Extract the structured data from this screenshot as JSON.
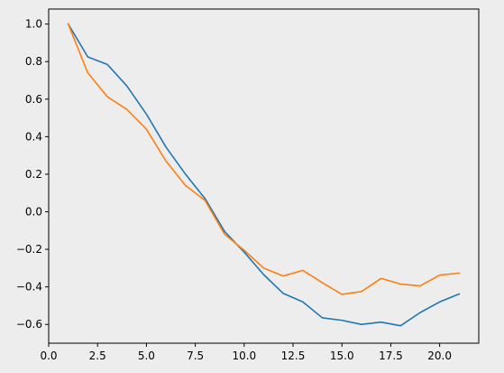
{
  "chart_data": {
    "type": "line",
    "title": "",
    "xlabel": "",
    "ylabel": "",
    "xlim": [
      0,
      22
    ],
    "ylim": [
      -0.7,
      1.08
    ],
    "grid": false,
    "legend": "none",
    "x_ticks": [
      0,
      2.5,
      5,
      7.5,
      10,
      12.5,
      15,
      17.5,
      20
    ],
    "x_tick_labels": [
      "0.0",
      "2.5",
      "5.0",
      "7.5",
      "10.0",
      "12.5",
      "15.0",
      "17.5",
      "20.0"
    ],
    "y_ticks": [
      1.0,
      0.8,
      0.6,
      0.4,
      0.2,
      0.0,
      -0.2,
      -0.4,
      -0.6
    ],
    "y_tick_labels": [
      "1.0",
      "0.8",
      "0.6",
      "0.4",
      "0.2",
      "0.0",
      "−0.2",
      "−0.4",
      "−0.6"
    ],
    "x": [
      1,
      2,
      3,
      4,
      5,
      6,
      7,
      8,
      9,
      10,
      11,
      12,
      13,
      14,
      15,
      16,
      17,
      18,
      19,
      20,
      21
    ],
    "series": [
      {
        "color": "#1f77b4",
        "values": [
          1.0,
          0.825,
          0.785,
          0.67,
          0.52,
          0.345,
          0.2,
          0.07,
          -0.105,
          -0.215,
          -0.335,
          -0.435,
          -0.48,
          -0.565,
          -0.578,
          -0.6,
          -0.588,
          -0.607,
          -0.537,
          -0.48,
          -0.438
        ]
      },
      {
        "color": "#ff7f0e",
        "values": [
          1.0,
          0.74,
          0.613,
          0.545,
          0.44,
          0.27,
          0.14,
          0.06,
          -0.12,
          -0.205,
          -0.3,
          -0.342,
          -0.312,
          -0.378,
          -0.44,
          -0.425,
          -0.355,
          -0.385,
          -0.395,
          -0.337,
          -0.327
        ]
      }
    ]
  }
}
